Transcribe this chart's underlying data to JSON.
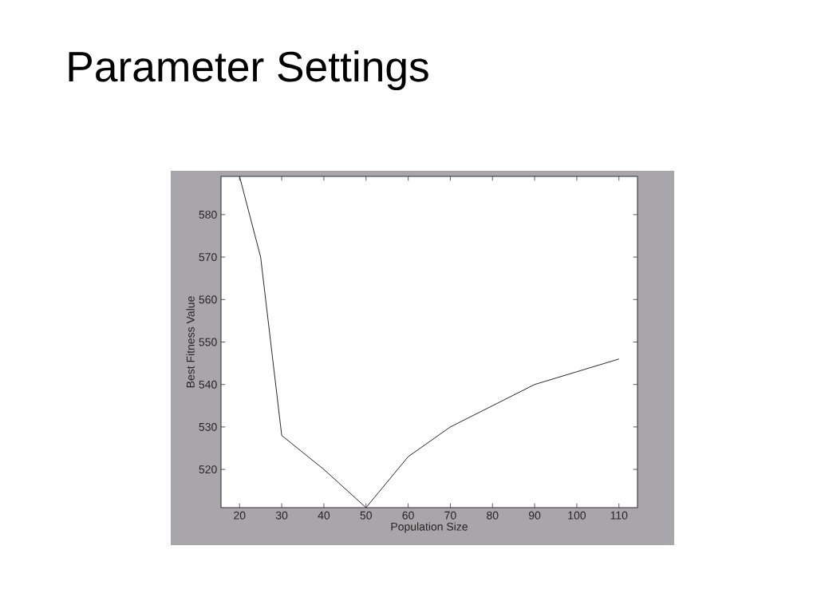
{
  "chart_data": {
    "type": "line",
    "title": "Parameter Settings",
    "xlabel": "Population Size",
    "ylabel": "Best Fitness Value",
    "x": [
      20,
      25,
      30,
      40,
      50,
      60,
      70,
      80,
      90,
      100,
      110
    ],
    "series": [
      {
        "color": "#1a1a1a",
        "values": [
          589,
          570,
          528,
          520,
          511,
          523,
          530,
          535,
          540,
          543,
          546
        ]
      }
    ],
    "xlim": [
      15.6,
      114.4
    ],
    "ylim": [
      511,
      589
    ],
    "xticks": [
      20,
      30,
      40,
      50,
      60,
      70,
      80,
      90,
      100,
      110
    ],
    "yticks": [
      520,
      530,
      540,
      550,
      560,
      570,
      580
    ]
  }
}
